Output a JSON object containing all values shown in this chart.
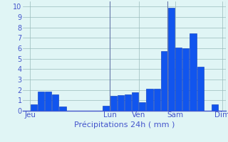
{
  "values": [
    0,
    0.6,
    1.85,
    1.85,
    1.6,
    0.4,
    0,
    0,
    0,
    0,
    0,
    0.5,
    1.45,
    1.5,
    1.6,
    1.8,
    0.85,
    2.1,
    2.1,
    5.7,
    9.9,
    6.1,
    6.0,
    7.4,
    4.2,
    0,
    0.6,
    0
  ],
  "day_labels": [
    "Jeu",
    "Lun",
    "Ven",
    "Sam",
    "Dim"
  ],
  "day_tick_pos": [
    0.5,
    11.5,
    15.5,
    20.5,
    27.0
  ],
  "vline_positions": [
    11.5,
    19.5,
    27.5
  ],
  "bar_color": "#1155ee",
  "bar_edge_color": "#0033bb",
  "bg_color": "#e0f5f5",
  "grid_color": "#99bbbb",
  "axis_label_color": "#4455cc",
  "tick_color": "#4455cc",
  "ylabel_ticks": [
    0,
    1,
    2,
    3,
    4,
    5,
    6,
    7,
    8,
    9,
    10
  ],
  "ylim": [
    0,
    10.5
  ],
  "xlim": [
    -0.5,
    27.5
  ],
  "xlabel": "Précipitations 24h ( mm )",
  "xlabel_fontsize": 8,
  "ytick_fontsize": 7,
  "xtick_fontsize": 7.5
}
